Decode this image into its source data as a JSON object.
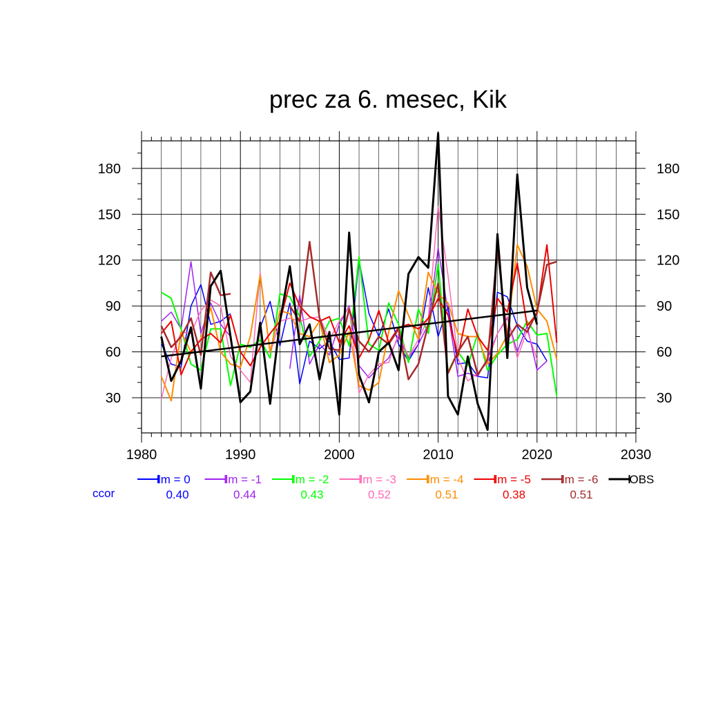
{
  "chart_data": {
    "type": "line",
    "title": "prec za 6. mesec, Kik",
    "xlabel": "",
    "ylabel": "",
    "xlim": [
      1980,
      2030
    ],
    "ylim": [
      7,
      198
    ],
    "x_ticks": [
      1980,
      1990,
      2000,
      2010,
      2020,
      2030
    ],
    "y_ticks": [
      30,
      60,
      90,
      120,
      150,
      180
    ],
    "grid": true,
    "years": [
      1982,
      1983,
      1984,
      1985,
      1986,
      1987,
      1988,
      1989,
      1990,
      1991,
      1992,
      1993,
      1994,
      1995,
      1996,
      1997,
      1998,
      1999,
      2000,
      2001,
      2002,
      2003,
      2004,
      2005,
      2006,
      2007,
      2008,
      2009,
      2010,
      2011,
      2012,
      2013,
      2014,
      2015,
      2016,
      2017,
      2018,
      2019,
      2020,
      2021,
      2022
    ],
    "ccor_label": "ccor",
    "series": [
      {
        "name": "lm = 0",
        "color": "#0000ff",
        "width": 1.5,
        "ccor": "0.40",
        "values": [
          65,
          52,
          50,
          90,
          104,
          78,
          80,
          85,
          null,
          null,
          76,
          93,
          64,
          92,
          39,
          67,
          62,
          67,
          55,
          56,
          120,
          85,
          70,
          88,
          65,
          54,
          65,
          102,
          70,
          90,
          52,
          53,
          44,
          43,
          99,
          96,
          77,
          67,
          65,
          54,
          null
        ]
      },
      {
        "name": "lm = -1",
        "color": "#a020f0",
        "width": 1.5,
        "ccor": "0.44",
        "values": [
          80,
          86,
          75,
          119,
          72,
          92,
          78,
          70,
          null,
          null,
          null,
          null,
          null,
          49,
          97,
          52,
          65,
          58,
          78,
          90,
          51,
          43,
          50,
          56,
          70,
          56,
          65,
          78,
          128,
          86,
          44,
          46,
          44,
          56,
          72,
          82,
          60,
          77,
          48,
          54,
          null
        ]
      },
      {
        "name": "lm = -2",
        "color": "#00ff00",
        "width": 2,
        "ccor": "0.43",
        "values": [
          99,
          95,
          75,
          52,
          48,
          75,
          75,
          38,
          65,
          63,
          68,
          56,
          98,
          96,
          83,
          57,
          67,
          80,
          82,
          64,
          122,
          65,
          61,
          92,
          78,
          53,
          88,
          72,
          118,
          47,
          60,
          51,
          72,
          48,
          58,
          65,
          68,
          80,
          71,
          72,
          31
        ]
      },
      {
        "name": "lm = -3",
        "color": "#ff69b4",
        "width": 1.5,
        "ccor": "0.52",
        "values": [
          29,
          56,
          73,
          72,
          87,
          94,
          90,
          57,
          48,
          40,
          112,
          59,
          80,
          82,
          80,
          82,
          83,
          68,
          80,
          89,
          33,
          45,
          52,
          53,
          72,
          57,
          68,
          82,
          155,
          110,
          56,
          41,
          46,
          53,
          72,
          83,
          56,
          74,
          55,
          null,
          null
        ]
      },
      {
        "name": "lm = -4",
        "color": "#ff8c00",
        "width": 2,
        "ccor": "0.51",
        "values": [
          44,
          28,
          73,
          60,
          68,
          89,
          60,
          52,
          50,
          70,
          110,
          60,
          87,
          85,
          72,
          70,
          80,
          53,
          58,
          73,
          38,
          35,
          40,
          73,
          100,
          84,
          68,
          112,
          98,
          92,
          72,
          70,
          70,
          52,
          59,
          71,
          130,
          116,
          88,
          80,
          55
        ]
      },
      {
        "name": "lm = -5",
        "color": "#ee0000",
        "width": 2,
        "ccor": "0.38",
        "values": [
          72,
          80,
          45,
          60,
          68,
          72,
          66,
          84,
          60,
          51,
          63,
          72,
          80,
          105,
          90,
          83,
          80,
          83,
          66,
          77,
          56,
          68,
          87,
          66,
          76,
          78,
          75,
          82,
          95,
          84,
          57,
          88,
          70,
          61,
          95,
          86,
          118,
          77,
          85,
          130,
          66
        ]
      },
      {
        "name": "lm = -6",
        "color": "#a52a2a",
        "width": 2.5,
        "ccor": "0.51",
        "values": [
          77,
          63,
          70,
          82,
          58,
          112,
          97,
          98,
          null,
          null,
          null,
          null,
          null,
          90,
          80,
          132,
          82,
          62,
          61,
          88,
          67,
          60,
          70,
          65,
          75,
          42,
          52,
          78,
          105,
          46,
          60,
          70,
          45,
          55,
          128,
          68,
          78,
          73,
          86,
          117,
          119
        ]
      },
      {
        "name": "OBS",
        "color": "#000000",
        "width": 3,
        "ccor": "",
        "values": [
          70,
          41,
          54,
          76,
          36,
          103,
          113,
          70,
          27,
          34,
          79,
          26,
          80,
          116,
          65,
          78,
          42,
          73,
          19,
          138,
          45,
          27,
          60,
          66,
          48,
          111,
          122,
          115,
          203,
          31,
          19,
          57,
          26,
          9,
          137,
          56,
          176,
          102,
          78,
          null,
          null
        ]
      }
    ],
    "trend": {
      "x": [
        1982,
        2020
      ],
      "y": [
        57,
        87
      ],
      "color": "#000000"
    }
  }
}
